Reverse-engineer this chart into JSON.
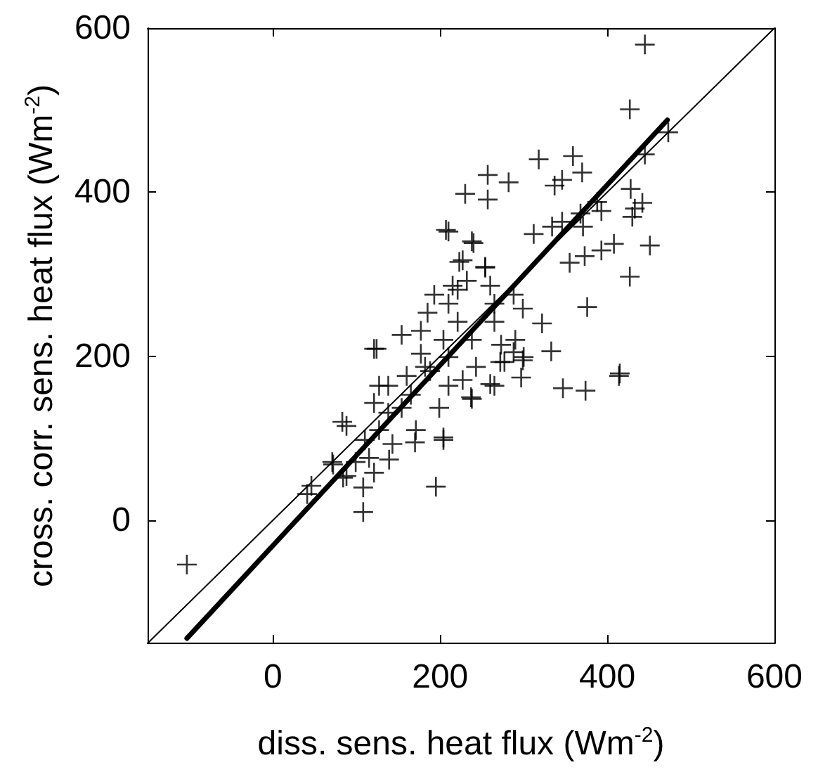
{
  "chart_data": {
    "type": "scatter",
    "xlabel": "diss. sens. heat flux (Wm$^{-2}$)",
    "ylabel": "cross. corr. sens. heat flux (Wm$^{-2}$)",
    "xlim": [
      -150,
      600
    ],
    "ylim": [
      -150,
      600
    ],
    "xticks": [
      0,
      200,
      400,
      600
    ],
    "yticks": [
      0,
      200,
      400,
      600
    ],
    "grid": false,
    "marker": "cross",
    "series": [
      {
        "color": "#000000",
        "x": [
          445,
          427,
          473,
          445,
          318,
          359,
          370,
          257,
          282,
          337,
          346,
          230,
          257,
          428,
          433,
          442,
          430,
          388,
          368,
          393,
          334,
          346,
          312,
          371,
          207,
          238,
          451,
          408,
          393,
          355,
          373,
          223,
          254,
          427,
          376,
          322,
          333,
          288,
          300,
          272,
          121,
          415,
          260,
          297,
          347,
          374,
          414,
          237,
          195,
          108,
          -103,
          46,
          41,
          204,
          170,
          83,
          72,
          108,
          84,
          139,
          121,
          210,
          240,
          227,
          254,
          215,
          232,
          260,
          185,
          154,
          124,
          177,
          204,
          221,
          265,
          288,
          299,
          277,
          265,
          238,
          210,
          188,
          138,
          121,
          88,
          154,
          171,
          204,
          143,
          110,
          99,
          182,
          127,
          165,
          199,
          138,
          177,
          160,
          210,
          238,
          243,
          227,
          127,
          71,
          88,
          115,
          265,
          290,
          299,
          273,
          210,
          193,
          221
        ],
        "values": [
          580,
          501,
          473,
          446,
          440,
          444,
          424,
          421,
          412,
          408,
          415,
          398,
          391,
          404,
          380,
          387,
          370,
          388,
          374,
          377,
          358,
          364,
          349,
          358,
          354,
          340,
          335,
          337,
          329,
          314,
          322,
          315,
          309,
          297,
          260,
          240,
          206,
          205,
          199,
          193,
          209,
          179,
          166,
          174,
          161,
          158,
          176,
          150,
          41,
          10,
          -54,
          42,
          32,
          101,
          95,
          120,
          68,
          40,
          52,
          74,
          58,
          352,
          338,
          317,
          308,
          286,
          292,
          286,
          253,
          226,
          209,
          231,
          220,
          242,
          264,
          275,
          258,
          193,
          164,
          148,
          164,
          182,
          164,
          143,
          115,
          137,
          110,
          98,
          93,
          98,
          71,
          187,
          164,
          153,
          137,
          131,
          203,
          176,
          199,
          220,
          187,
          171,
          110,
          71,
          54,
          76,
          242,
          220,
          195,
          214,
          264,
          275,
          281
        ]
      },
      {
        "type": "line",
        "marker": "none",
        "color": "#000000",
        "x": [
          -103,
          472
        ],
        "values": [
          -144,
          488
        ]
      },
      {
        "type": "line",
        "marker": "none",
        "color": "#000000",
        "x": [
          -150,
          600
        ],
        "values": [
          -150,
          600
        ]
      }
    ]
  }
}
